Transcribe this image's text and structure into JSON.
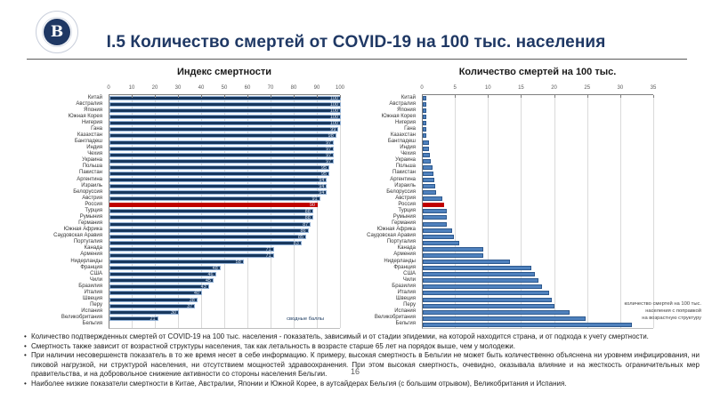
{
  "slide": {
    "title": "I.5 Количество смертей от COVID-19 на 100 тыс. населения",
    "page_number": "16",
    "logo_glyph": "В",
    "accent_color": "#1f3864"
  },
  "bullets": [
    "Количество подтвержденных смертей от COVID-19 на 100 тыс. населения - показатель, зависимый и от стадии эпидемии, на которой находится страна, и от подхода к учету смертности.",
    "Смертность также зависит от возрастной структуры населения, так как летальность в возрасте старше 65 лет на порядок выше, чем у молодежи.",
    "При наличии несовершенств показатель в то же время несет в себе информацию. К примеру, высокая смертность в Бельгии не может быть количественно объяснена ни уровнем инфицирования, ни пиковой нагрузкой, ни структурой населения, ни отсутствием мощностей здравоохранения. При этом высокая смертность, очевидно, оказывала влияние и на жесткость ограничительных мер правительства, и на добровольное снижение активности со стороны населения Бельгии.",
    "Наиболее низкие показатели смертности в Китае, Австралии, Японии и Южной Корее, в аутсайдерах Бельгия (с большим отрывом), Великобритания и Испания."
  ],
  "chart_data": [
    {
      "type": "bar",
      "orientation": "horizontal",
      "title": "Индекс смертности",
      "xlabel": "",
      "xlim": [
        0,
        100
      ],
      "xticks": [
        0,
        10,
        20,
        30,
        40,
        50,
        60,
        70,
        80,
        90,
        100
      ],
      "grid": true,
      "bar_color": "#17375e",
      "highlight_category": "Россия",
      "highlight_color": "#c00000",
      "value_labels": true,
      "annotation": [
        "сводные баллы"
      ],
      "categories": [
        "Китай",
        "Австралия",
        "Япония",
        "Южная Корея",
        "Нигерия",
        "Гана",
        "Казахстан",
        "Бангладеш",
        "Индия",
        "Чехия",
        "Украина",
        "Польша",
        "Пакистан",
        "Аргентина",
        "Израиль",
        "Белоруссия",
        "Австрия",
        "Россия",
        "Турция",
        "Румыния",
        "Германия",
        "Южная Африка",
        "Саудовская Аравия",
        "Португалия",
        "Канада",
        "Армения",
        "Нидерланды",
        "Франция",
        "США",
        "Чили",
        "Бразилия",
        "Италия",
        "Швеция",
        "Перу",
        "Испания",
        "Великобритания",
        "Бельгия"
      ],
      "values": [
        100,
        100,
        100,
        100,
        100,
        99,
        98,
        97,
        97,
        97,
        97,
        95,
        95,
        94,
        94,
        94,
        91,
        90,
        88,
        88,
        87,
        86,
        85,
        83,
        71,
        71,
        58,
        48,
        46,
        45,
        43,
        40,
        38,
        37,
        30,
        21,
        0
      ]
    },
    {
      "type": "bar",
      "orientation": "horizontal",
      "title": "Количество смертей на 100 тыс.",
      "xlabel": "",
      "xlim": [
        0,
        35
      ],
      "xticks": [
        0,
        5,
        10,
        15,
        20,
        25,
        30,
        35
      ],
      "grid": true,
      "bar_color": "#4f81bd",
      "highlight_category": "Россия",
      "highlight_color": "#c00000",
      "value_labels": false,
      "annotation": [
        "количество смертей на 100 тыс.",
        "населения с поправкой",
        "на возрастную структуру"
      ],
      "categories": [
        "Китай",
        "Австралия",
        "Япония",
        "Южная Корея",
        "Нигерия",
        "Гана",
        "Казахстан",
        "Бангладеш",
        "Индия",
        "Чехия",
        "Украина",
        "Польша",
        "Пакистан",
        "Аргентина",
        "Израиль",
        "Белоруссия",
        "Австрия",
        "Россия",
        "Турция",
        "Румыния",
        "Германия",
        "Южная Африка",
        "Саудовская Аравия",
        "Португалия",
        "Канада",
        "Армения",
        "Нидерланды",
        "Франция",
        "США",
        "Чили",
        "Бразилия",
        "Италия",
        "Швеция",
        "Перу",
        "Испания",
        "Великобритания",
        "Бельгия"
      ],
      "values": [
        0.2,
        0.3,
        0.3,
        0.4,
        0.4,
        0.4,
        0.6,
        0.9,
        1.0,
        1.1,
        1.2,
        1.5,
        1.6,
        1.8,
        1.9,
        2.0,
        2.9,
        3.2,
        3.6,
        3.6,
        3.7,
        4.4,
        4.7,
        5.5,
        9.2,
        9.2,
        13.2,
        16.4,
        17.0,
        17.5,
        18.1,
        19.1,
        19.5,
        19.9,
        22.2,
        24.7,
        31.6
      ]
    }
  ]
}
